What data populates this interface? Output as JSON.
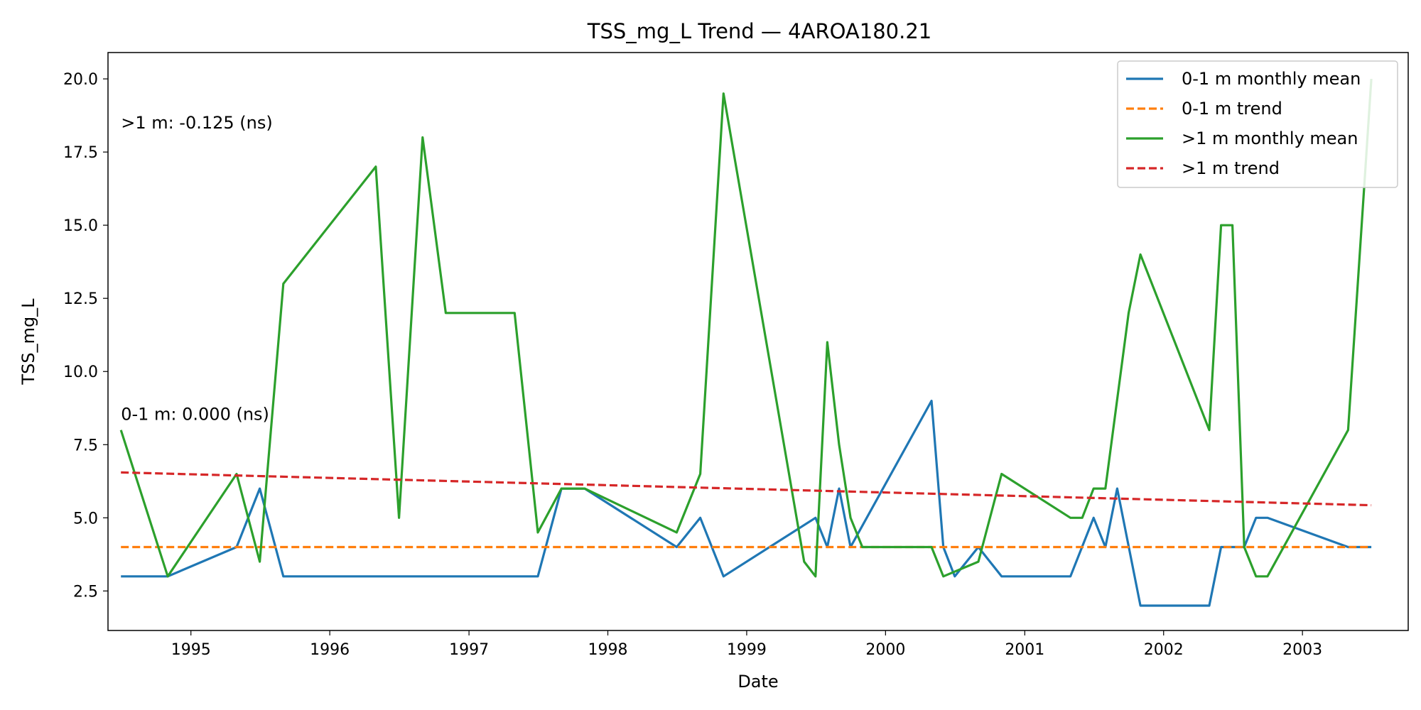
{
  "chart_data": {
    "type": "line",
    "title": "TSS_mg_L Trend — 4AROA180.21",
    "xlabel": "Date",
    "ylabel": "TSS_mg_L",
    "x_ticks": [
      "1995",
      "1996",
      "1997",
      "1998",
      "1999",
      "2000",
      "2001",
      "2002",
      "2003"
    ],
    "y_ticks": [
      "2.5",
      "5.0",
      "7.5",
      "10.0",
      "12.5",
      "15.0",
      "17.5",
      "20.0"
    ],
    "xlim": [
      "1994-05-28",
      "2003-10-06"
    ],
    "ylim": [
      1.15,
      20.9
    ],
    "grid": false,
    "legend_position": "top-right",
    "annotations": [
      {
        "text": ">1 m: -0.125 (ns)",
        "x": "1994-07-01",
        "y": 18.3
      },
      {
        "text": "0-1 m: 0.000 (ns)",
        "x": "1994-07-01",
        "y": 8.35
      }
    ],
    "series": [
      {
        "name": "0-1 m monthly mean",
        "color": "#1f77b4",
        "style": "solid",
        "points": [
          [
            "1994-07-01",
            3
          ],
          [
            "1994-11-01",
            3
          ],
          [
            "1995-05-01",
            4
          ],
          [
            "1995-07-01",
            6
          ],
          [
            "1995-09-01",
            3
          ],
          [
            "1996-05-01",
            3
          ],
          [
            "1996-07-01",
            3
          ],
          [
            "1996-09-01",
            3
          ],
          [
            "1996-11-01",
            3
          ],
          [
            "1997-05-01",
            3
          ],
          [
            "1997-07-01",
            3
          ],
          [
            "1997-09-01",
            6
          ],
          [
            "1997-11-01",
            6
          ],
          [
            "1998-07-01",
            4
          ],
          [
            "1998-09-01",
            5
          ],
          [
            "1998-11-01",
            3
          ],
          [
            "1999-07-01",
            5
          ],
          [
            "1999-08-01",
            4
          ],
          [
            "1999-09-01",
            6
          ],
          [
            "1999-10-01",
            4
          ],
          [
            "2000-05-01",
            9
          ],
          [
            "2000-06-01",
            4
          ],
          [
            "2000-07-01",
            3
          ],
          [
            "2000-09-01",
            4
          ],
          [
            "2000-11-01",
            3
          ],
          [
            "2001-05-01",
            3
          ],
          [
            "2001-07-01",
            5
          ],
          [
            "2001-08-01",
            4
          ],
          [
            "2001-09-01",
            6
          ],
          [
            "2001-11-01",
            2
          ],
          [
            "2002-05-01",
            2
          ],
          [
            "2002-06-01",
            4
          ],
          [
            "2002-08-01",
            4
          ],
          [
            "2002-09-01",
            5
          ],
          [
            "2002-10-01",
            5
          ],
          [
            "2003-05-01",
            4
          ],
          [
            "2003-07-01",
            4
          ]
        ]
      },
      {
        "name": "0-1 m trend",
        "color": "#ff7f0e",
        "style": "dashed",
        "points": [
          [
            "1994-07-01",
            4.0
          ],
          [
            "2003-07-01",
            4.0
          ]
        ]
      },
      {
        "name": ">1 m monthly mean",
        "color": "#2ca02c",
        "style": "solid",
        "points": [
          [
            "1994-07-01",
            8
          ],
          [
            "1994-11-01",
            3
          ],
          [
            "1995-05-01",
            6.5
          ],
          [
            "1995-07-01",
            3.5
          ],
          [
            "1995-09-01",
            13
          ],
          [
            "1996-05-01",
            17
          ],
          [
            "1996-07-01",
            5
          ],
          [
            "1996-09-01",
            18
          ],
          [
            "1996-11-01",
            12
          ],
          [
            "1997-05-01",
            12
          ],
          [
            "1997-07-01",
            4.5
          ],
          [
            "1997-09-01",
            6
          ],
          [
            "1997-11-01",
            6
          ],
          [
            "1998-07-01",
            4.5
          ],
          [
            "1998-09-01",
            6.5
          ],
          [
            "1998-11-01",
            19.5
          ],
          [
            "1999-06-01",
            3.5
          ],
          [
            "1999-07-01",
            3
          ],
          [
            "1999-08-01",
            11
          ],
          [
            "1999-09-01",
            7.5
          ],
          [
            "1999-10-01",
            5
          ],
          [
            "1999-11-01",
            4
          ],
          [
            "2000-05-01",
            4
          ],
          [
            "2000-06-01",
            3
          ],
          [
            "2000-09-01",
            3.5
          ],
          [
            "2000-11-01",
            6.5
          ],
          [
            "2001-05-01",
            5
          ],
          [
            "2001-06-01",
            5
          ],
          [
            "2001-07-01",
            6
          ],
          [
            "2001-08-01",
            6
          ],
          [
            "2001-10-01",
            12
          ],
          [
            "2001-11-01",
            14
          ],
          [
            "2002-05-01",
            8
          ],
          [
            "2002-06-01",
            15
          ],
          [
            "2002-07-01",
            15
          ],
          [
            "2002-08-01",
            4
          ],
          [
            "2002-09-01",
            3
          ],
          [
            "2002-10-01",
            3
          ],
          [
            "2003-05-01",
            8
          ],
          [
            "2003-07-01",
            20
          ]
        ]
      },
      {
        "name": ">1 m trend",
        "color": "#d62728",
        "style": "dashed",
        "points": [
          [
            "1994-07-01",
            6.55
          ],
          [
            "2003-07-01",
            5.43
          ]
        ]
      }
    ]
  }
}
